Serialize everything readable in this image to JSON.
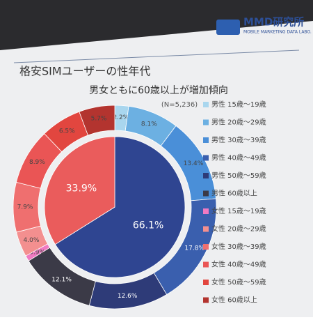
{
  "header": {
    "logo": "MMD研究所",
    "logo_sub": "MOBILE MARKETING DATA LABO."
  },
  "chart_data": {
    "type": "pie",
    "title": "格安SIMユーザーの性年代",
    "subtitle": "男女ともに60歳以上が増加傾向",
    "note": "(N=5,236)",
    "outer": {
      "categories": [
        "男性 15歳～19歳",
        "男性 20歳～29歳",
        "男性 30歳～39歳",
        "男性 40歳～49歳",
        "男性 50歳～59歳",
        "男性 60歳以上",
        "女性 15歳～19歳",
        "女性 20歳～29歳",
        "女性 30歳～39歳",
        "女性 40歳～49歳",
        "女性 50歳～59歳",
        "女性 60歳以上"
      ],
      "values": [
        2.2,
        8.1,
        13.4,
        17.8,
        12.6,
        12.1,
        0.9,
        4.0,
        7.9,
        8.9,
        6.5,
        5.7
      ],
      "value_labels": [
        "2.2%",
        "8.1%",
        "13.4%",
        "17.8%",
        "12.6%",
        "12.1%",
        "0.9%",
        "4.0%",
        "7.9%",
        "8.9%",
        "6.5%",
        "5.7%"
      ],
      "colors": [
        "#a9d6ee",
        "#6cb0e2",
        "#4a8fd8",
        "#3a5fae",
        "#2e3b78",
        "#3b3a47",
        "#f07ac2",
        "#f38f8f",
        "#ef6f6f",
        "#ea5555",
        "#e2463f",
        "#b3342f"
      ]
    },
    "inner": {
      "values": [
        66.1,
        33.9
      ],
      "value_labels": [
        "66.1%",
        "33.9%"
      ],
      "colors": [
        "#2f4591",
        "#ea5c5c"
      ]
    }
  }
}
